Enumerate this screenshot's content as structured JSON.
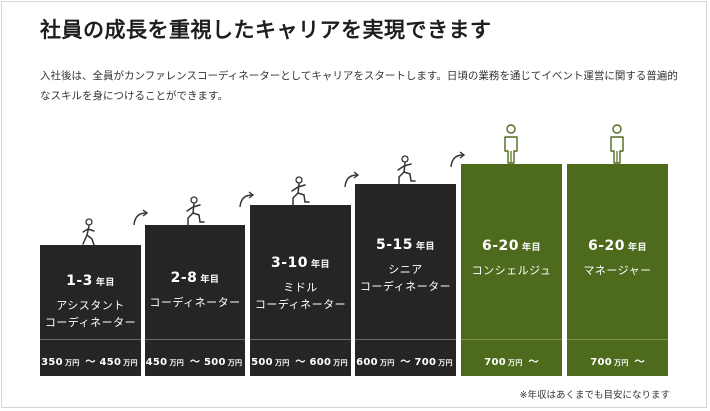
{
  "title": "社員の成長を重視したキャリアを実現できます",
  "description": "入社後は、全員がカンファレンスコーディネーターとしてキャリアをスタートします。日頃の業務を通じてイベント運営に関する普遍的なスキルを身につけることができます。",
  "steps": [
    {
      "years": "1-3",
      "years_unit": "年目",
      "role_line1": "アシスタント",
      "role_line2": "コーディネーター",
      "salary_from": "350",
      "salary_to": "450",
      "salary_unit": "万円",
      "tilde": "〜",
      "icon": "person-walking-icon"
    },
    {
      "years": "2-8",
      "years_unit": "年目",
      "role_line1": "コーディネーター",
      "role_line2": "",
      "salary_from": "450",
      "salary_to": "500",
      "salary_unit": "万円",
      "tilde": "〜",
      "icon": "person-climbing-icon"
    },
    {
      "years": "3-10",
      "years_unit": "年目",
      "role_line1": "ミドル",
      "role_line2": "コーディネーター",
      "salary_from": "500",
      "salary_to": "600",
      "salary_unit": "万円",
      "tilde": "〜",
      "icon": "person-climbing-icon"
    },
    {
      "years": "5-15",
      "years_unit": "年目",
      "role_line1": "シニア",
      "role_line2": "コーディネーター",
      "salary_from": "600",
      "salary_to": "700",
      "salary_unit": "万円",
      "tilde": "〜",
      "icon": "person-climbing-icon"
    },
    {
      "years": "6-20",
      "years_unit": "年目",
      "role_line1": "コンシェルジュ",
      "role_line2": "",
      "salary_from": "700",
      "salary_to": "",
      "salary_unit": "万円",
      "tilde": "〜",
      "icon": "person-standing-icon"
    },
    {
      "years": "6-20",
      "years_unit": "年目",
      "role_line1": "マネージャー",
      "role_line2": "",
      "salary_from": "700",
      "salary_to": "",
      "salary_unit": "万円",
      "tilde": "〜",
      "icon": "person-standing-icon"
    }
  ],
  "note": "※年収はあくまでも目安になります",
  "colors": {
    "dark": "#252525",
    "green": "#4e6a1c",
    "text": "#222222"
  }
}
